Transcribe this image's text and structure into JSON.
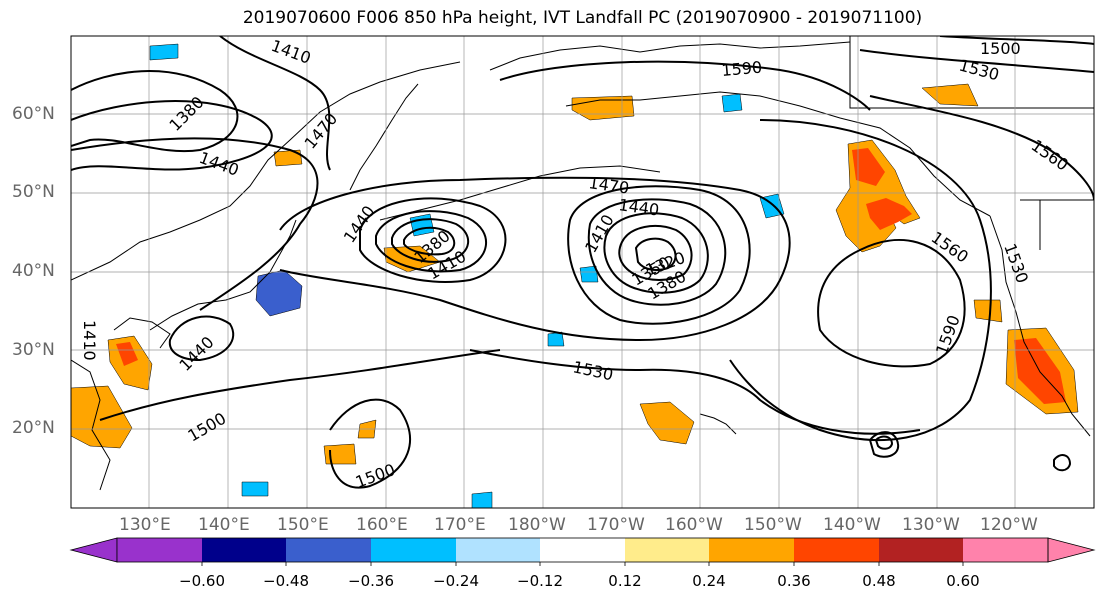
{
  "title": "2019070600 F006 850 hPa height, IVT Landfall PC (2019070900 - 2019071100)",
  "lat_labels": [
    "60°N",
    "50°N",
    "40°N",
    "30°N",
    "20°N"
  ],
  "lon_labels": [
    "130°E",
    "140°E",
    "150°E",
    "160°E",
    "170°E",
    "180°W",
    "170°W",
    "160°W",
    "150°W",
    "140°W",
    "130°W",
    "120°W"
  ],
  "contour_labels": [
    "1410",
    "1380",
    "1440",
    "1470",
    "1500",
    "1530",
    "1590",
    "1470",
    "1440",
    "1410",
    "1440",
    "1380",
    "1410",
    "1350",
    "1380",
    "1320",
    "1560",
    "1560",
    "1530",
    "1590",
    "1530",
    "1500",
    "1500",
    "1440",
    "1410"
  ],
  "colorbar": {
    "ticks": [
      "−0.60",
      "−0.48",
      "−0.36",
      "−0.24",
      "−0.12",
      "0.12",
      "0.24",
      "0.36",
      "0.48",
      "0.60"
    ],
    "colors": [
      "#9932cc",
      "#00008b",
      "#3a5fcd",
      "#00bfff",
      "#b0e2ff",
      "#ffffff",
      "#ffec8b",
      "#ffa500",
      "#ff4500",
      "#b22222",
      "#ff82ab"
    ]
  }
}
